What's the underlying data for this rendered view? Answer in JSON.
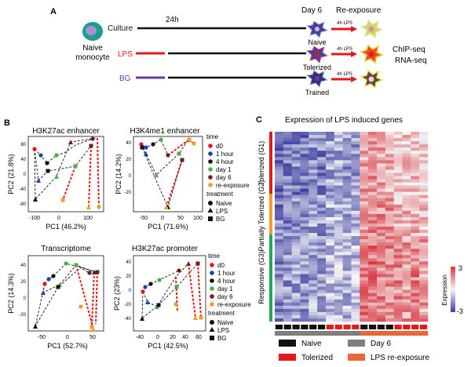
{
  "panel_a": {
    "label": "A",
    "cell_label": [
      "Naive",
      "monocyte"
    ],
    "time_24h": "24h",
    "day6": "Day 6",
    "reexposure": "Re-exposure",
    "rows": [
      {
        "label": "Culture",
        "label_color": "#111111",
        "pre_color": "#111111",
        "state": "Naive"
      },
      {
        "label": "LPS",
        "label_color": "#e31a1c",
        "pre_color": "#e31a1c",
        "state": "Tolerized"
      },
      {
        "label": "BG",
        "label_color": "#6a3d9a",
        "pre_color": "#6a3d9a",
        "state": "Trained"
      }
    ],
    "lps_arrow_label": "4h LPS",
    "assays": [
      "ChIP-seq",
      "RNA-seq"
    ],
    "arrow_color": "#e31a1c"
  },
  "panel_b": {
    "label": "B",
    "time_legend_title": "time",
    "time_legend": [
      {
        "label": "d0",
        "color": "#e31a1c"
      },
      {
        "label": "1 hour",
        "color": "#1f3fb4"
      },
      {
        "label": "4 hour",
        "color": "#111111"
      },
      {
        "label": "day 1",
        "color": "#4daf4a"
      },
      {
        "label": "day 6",
        "color": "#6b1e1e"
      },
      {
        "label": "re-exposure",
        "color": "#f39c2b"
      }
    ],
    "treatment_legend_title": "treatment",
    "treatment_legend": [
      {
        "label": "Naive",
        "shape": "circle"
      },
      {
        "label": "LPS",
        "shape": "triangle"
      },
      {
        "label": "BG",
        "shape": "square"
      }
    ],
    "plots": [
      {
        "title": "H3K27ac enhancer",
        "xlabel": "PC1 (46.2%)",
        "ylabel": "PC2 (21.8%)",
        "xticks": [
          "-100",
          "0",
          "100"
        ],
        "yticks": [
          "-80",
          "-40",
          "0",
          "40",
          "80"
        ]
      },
      {
        "title": "H3K4me1 enhancer",
        "xlabel": "PC1 (71.6%)",
        "ylabel": "PC2 (14.2%)",
        "xticks": [
          "-50",
          "0",
          "50",
          "100"
        ],
        "yticks": [
          "-20",
          "0",
          "20",
          "40"
        ]
      },
      {
        "title": "Transcriptome",
        "xlabel": "PC1 (52.7%)",
        "ylabel": "PC2 (14.3%)",
        "xticks": [
          "-50",
          "0",
          "50"
        ],
        "yticks": [
          "-20",
          "0",
          "20",
          "40"
        ]
      },
      {
        "title": "H3K27ac promoter",
        "xlabel": "PC1 (42.5%)",
        "ylabel": "PC2 (23%)",
        "xticks": [
          "-40",
          "0",
          "20",
          "40",
          "60"
        ],
        "yticks": [
          "-40",
          "-20",
          "0",
          "20",
          "40"
        ]
      }
    ]
  },
  "panel_c": {
    "label": "C",
    "title": "Expression of LPS induced genes",
    "groups": [
      {
        "label": "Tolerized (G1)",
        "color": "#e31a1c"
      },
      {
        "label": "Partially Tolerized (G2)",
        "color": "#f39c2b"
      },
      {
        "label": "Responsive (G3)",
        "color": "#2ca25f"
      }
    ],
    "colorbar_title": "Expression",
    "colorbar_ticks": [
      "3",
      "-3"
    ],
    "legend": [
      {
        "label": "Naive",
        "color": "#111111"
      },
      {
        "label": "Day 6",
        "color": "#7f7f7f"
      },
      {
        "label": "Tolerized",
        "color": "#e31a1c"
      },
      {
        "label": "LPS re-exposure",
        "color": "#e8683a"
      }
    ],
    "sample_colors": [
      "#111111",
      "#111111",
      "#111111",
      "#111111",
      "#111111",
      "#111111",
      "#e31a1c",
      "#e31a1c",
      "#e31a1c",
      "#e31a1c",
      "#111111",
      "#111111",
      "#111111",
      "#111111",
      "#e31a1c",
      "#e31a1c",
      "#e31a1c",
      "#e31a1c"
    ],
    "condition_colors": [
      "#7f7f7f",
      "#7f7f7f",
      "#7f7f7f",
      "#7f7f7f",
      "#7f7f7f",
      "#7f7f7f",
      "#7f7f7f",
      "#7f7f7f",
      "#7f7f7f",
      "#7f7f7f",
      "#e8683a",
      "#e8683a",
      "#e8683a",
      "#e8683a",
      "#e8683a",
      "#e8683a",
      "#e8683a",
      "#e8683a"
    ]
  }
}
